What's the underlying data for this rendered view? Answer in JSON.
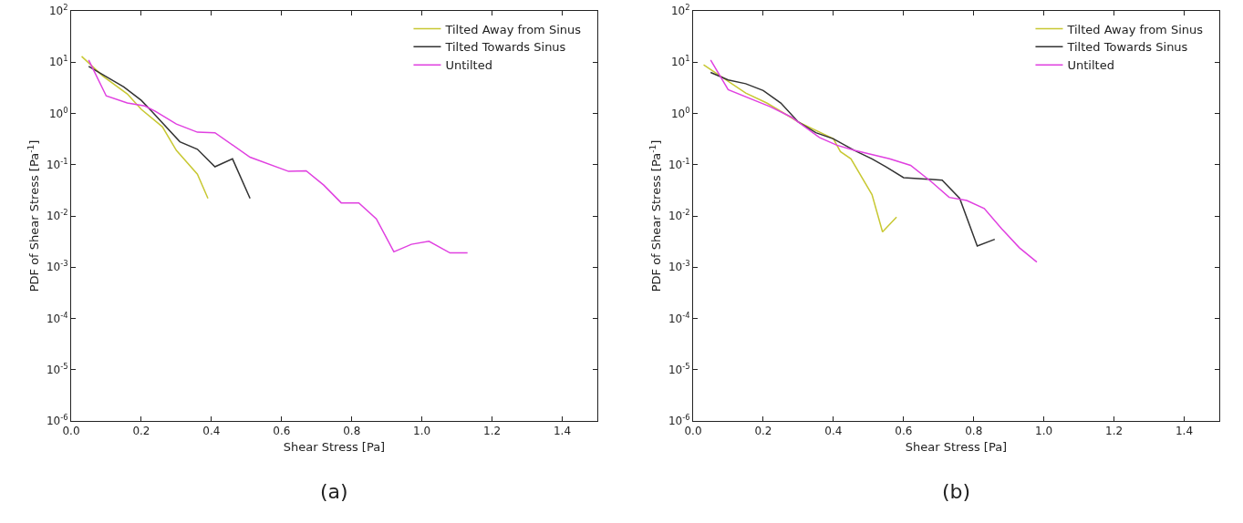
{
  "chart_data": [
    {
      "type": "line",
      "xlabel": "Shear Stress [Pa]",
      "ylabel": "PDF of Shear Stress [Pa$^{-1}$]",
      "annotations": [
        "(a)"
      ],
      "log": "y",
      "grid": false,
      "legend": "top right",
      "marker": "none",
      "line_style": "solid",
      "xlim": [
        0,
        1.5
      ],
      "xticks": [
        {
          "value": 0,
          "label": "0.0"
        },
        {
          "value": 0.2,
          "label": "0.2"
        },
        {
          "value": 0.4,
          "label": "0.4"
        },
        {
          "value": 0.6,
          "label": "0.6"
        },
        {
          "value": 0.8,
          "label": "0.8"
        },
        {
          "value": 1,
          "label": "1.0"
        },
        {
          "value": 1.2,
          "label": "1.2"
        },
        {
          "value": 1.4,
          "label": "1.4"
        }
      ],
      "ylim": [
        1e-06,
        100
      ],
      "yticks": [
        {
          "value": 1e-06,
          "label": "10$^{-6}$"
        },
        {
          "value": 1e-05,
          "label": "10$^{-5}$"
        },
        {
          "value": 0.0001,
          "label": "10$^{-4}$"
        },
        {
          "value": 0.001,
          "label": "10$^{-3}$"
        },
        {
          "value": 0.01,
          "label": "10$^{-2}$"
        },
        {
          "value": 0.1,
          "label": "10$^{-1}$"
        },
        {
          "value": 1,
          "label": "10$^{0}$"
        },
        {
          "value": 10,
          "label": "10$^{1}$"
        },
        {
          "value": 100,
          "label": "10$^{2}$"
        }
      ],
      "series": [
        {
          "name": "Tilted Away from Sinus",
          "color": "#c8c832",
          "x": [
            0.03,
            0.09,
            0.16,
            0.2,
            0.26,
            0.3,
            0.36,
            0.39
          ],
          "values": [
            13,
            5.4,
            2.4,
            1.2,
            0.55,
            0.19,
            0.065,
            0.022
          ]
        },
        {
          "name": "Tilted Towards Sinus",
          "color": "#333333",
          "x": [
            0.05,
            0.15,
            0.2,
            0.23,
            0.31,
            0.36,
            0.41,
            0.46,
            0.51
          ],
          "values": [
            8.3,
            3.3,
            1.8,
            1.1,
            0.28,
            0.2,
            0.091,
            0.13,
            0.022
          ]
        },
        {
          "name": "Untilted",
          "color": "#e040e0",
          "x": [
            0.05,
            0.1,
            0.16,
            0.21,
            0.24,
            0.3,
            0.36,
            0.41,
            0.51,
            0.62,
            0.67,
            0.72,
            0.77,
            0.82,
            0.87,
            0.92,
            0.97,
            1.02,
            1.08,
            1.13
          ],
          "values": [
            11,
            2.2,
            1.6,
            1.4,
            1.1,
            0.62,
            0.43,
            0.42,
            0.14,
            0.074,
            0.076,
            0.04,
            0.018,
            0.018,
            0.0088,
            0.002,
            0.0028,
            0.0032,
            0.0019,
            0.0019
          ]
        }
      ]
    },
    {
      "type": "line",
      "xlabel": "Shear Stress [Pa]",
      "ylabel": "PDF of Shear Stress [Pa$^{-1}$]",
      "annotations": [
        "(b)"
      ],
      "log": "y",
      "grid": false,
      "legend": "top right",
      "marker": "none",
      "line_style": "solid",
      "xlim": [
        0,
        1.5
      ],
      "xticks": [
        {
          "value": 0,
          "label": "0.0"
        },
        {
          "value": 0.2,
          "label": "0.2"
        },
        {
          "value": 0.4,
          "label": "0.4"
        },
        {
          "value": 0.6,
          "label": "0.6"
        },
        {
          "value": 0.8,
          "label": "0.8"
        },
        {
          "value": 1,
          "label": "1.0"
        },
        {
          "value": 1.2,
          "label": "1.2"
        },
        {
          "value": 1.4,
          "label": "1.4"
        }
      ],
      "ylim": [
        1e-06,
        100
      ],
      "yticks": [
        {
          "value": 1e-06,
          "label": "10$^{-6}$"
        },
        {
          "value": 1e-05,
          "label": "10$^{-5}$"
        },
        {
          "value": 0.0001,
          "label": "10$^{-4}$"
        },
        {
          "value": 0.001,
          "label": "10$^{-3}$"
        },
        {
          "value": 0.01,
          "label": "10$^{-2}$"
        },
        {
          "value": 0.1,
          "label": "10$^{-1}$"
        },
        {
          "value": 1,
          "label": "10$^{0}$"
        },
        {
          "value": 10,
          "label": "10$^{1}$"
        },
        {
          "value": 100,
          "label": "10$^{2}$"
        }
      ],
      "series": [
        {
          "name": "Tilted Away from Sinus",
          "color": "#c8c832",
          "x": [
            0.03,
            0.09,
            0.15,
            0.21,
            0.26,
            0.3,
            0.4,
            0.42,
            0.45,
            0.51,
            0.54,
            0.58
          ],
          "values": [
            8.9,
            4.7,
            2.5,
            1.6,
            1.0,
            0.68,
            0.32,
            0.18,
            0.13,
            0.026,
            0.0049,
            0.0095
          ]
        },
        {
          "name": "Tilted Towards Sinus",
          "color": "#333333",
          "x": [
            0.05,
            0.1,
            0.15,
            0.2,
            0.25,
            0.3,
            0.35,
            0.4,
            0.46,
            0.51,
            0.55,
            0.6,
            0.71,
            0.76,
            0.81,
            0.86
          ],
          "values": [
            6.3,
            4.5,
            3.8,
            2.8,
            1.6,
            0.68,
            0.42,
            0.32,
            0.19,
            0.13,
            0.091,
            0.056,
            0.05,
            0.022,
            0.0026,
            0.0035
          ]
        },
        {
          "name": "Untilted",
          "color": "#e040e0",
          "x": [
            0.05,
            0.1,
            0.22,
            0.28,
            0.36,
            0.41,
            0.46,
            0.56,
            0.62,
            0.68,
            0.73,
            0.78,
            0.83,
            0.88,
            0.93,
            0.98
          ],
          "values": [
            11,
            2.9,
            1.35,
            0.85,
            0.34,
            0.24,
            0.19,
            0.13,
            0.097,
            0.046,
            0.023,
            0.02,
            0.014,
            0.0056,
            0.0024,
            0.00126
          ]
        }
      ]
    }
  ]
}
